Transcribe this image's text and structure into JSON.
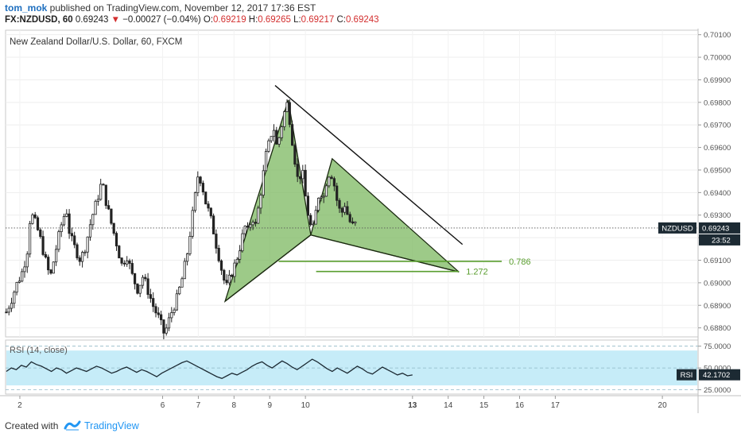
{
  "header": {
    "author": "tom_mok",
    "published": " published on TradingView.com, November 12, 2017 17:36 EST",
    "symbol": "FX:NZDUSD, 60",
    "last": "0.69243",
    "change": "−0.00027 (−0.04%)",
    "open_label": "O:",
    "open": "0.69219",
    "high_label": "H:",
    "high": "0.69265",
    "low_label": "L:",
    "low": "0.69217",
    "close_label": "C:",
    "close": "0.69243"
  },
  "footer": {
    "created_with": "Created with",
    "brand": "TradingView"
  },
  "colors": {
    "pattern_fill": "#7cb860",
    "pattern_stroke": "#1b2a10",
    "fib_line": "#5a9e2f",
    "rsi_bg": "#c6ecf8",
    "rsi_line": "#1c2a33",
    "price_tag": "#1c2a33",
    "candle": "#222222"
  },
  "chart_data": {
    "type": "candlestick",
    "title": "New Zealand Dollar/U.S. Dollar, 60, FXCM",
    "symbol_tag": "NZDUSD",
    "last_price_label": "0.69243",
    "last_price": 0.69243,
    "countdown": "23:52",
    "y_ticks": [
      "0.70100",
      "0.70000",
      "0.69900",
      "0.69800",
      "0.69700",
      "0.69600",
      "0.69500",
      "0.69400",
      "0.69300",
      "0.69200",
      "0.69100",
      "0.69000",
      "0.68900",
      "0.68800"
    ],
    "y_tick_values": [
      0.701,
      0.7,
      0.699,
      0.698,
      0.697,
      0.696,
      0.695,
      0.694,
      0.693,
      0.692,
      0.691,
      0.69,
      0.689,
      0.688
    ],
    "ylim": [
      0.6876,
      0.7012
    ],
    "x_ticks": [
      "2",
      "6",
      "7",
      "8",
      "9",
      "10",
      "13",
      "14",
      "15",
      "16",
      "17",
      "20"
    ],
    "x_tick_values": [
      2,
      6,
      7,
      8,
      9,
      10,
      13,
      14,
      15,
      16,
      17,
      20
    ],
    "x_bold_ticks": [
      "13"
    ],
    "xlim": [
      1.6,
      21.0
    ],
    "last_x": 13.0,
    "price_path": [
      [
        1.62,
        0.6887
      ],
      [
        1.75,
        0.6892
      ],
      [
        1.9,
        0.6899
      ],
      [
        2.05,
        0.6904
      ],
      [
        2.2,
        0.6913
      ],
      [
        2.3,
        0.6931
      ],
      [
        2.4,
        0.6928
      ],
      [
        2.55,
        0.6921
      ],
      [
        2.7,
        0.6911
      ],
      [
        2.85,
        0.6902
      ],
      [
        3.0,
        0.6914
      ],
      [
        3.15,
        0.6925
      ],
      [
        3.3,
        0.6933
      ],
      [
        3.4,
        0.6921
      ],
      [
        3.55,
        0.6915
      ],
      [
        3.7,
        0.691
      ],
      [
        3.85,
        0.6917
      ],
      [
        4.0,
        0.6928
      ],
      [
        4.15,
        0.6936
      ],
      [
        4.3,
        0.6945
      ],
      [
        4.4,
        0.6937
      ],
      [
        4.55,
        0.6927
      ],
      [
        4.7,
        0.6918
      ],
      [
        4.85,
        0.6908
      ],
      [
        5.0,
        0.6912
      ],
      [
        5.15,
        0.6903
      ],
      [
        5.3,
        0.6897
      ],
      [
        5.45,
        0.6903
      ],
      [
        5.6,
        0.6896
      ],
      [
        5.75,
        0.6889
      ],
      [
        5.9,
        0.6884
      ],
      [
        6.05,
        0.6877
      ],
      [
        6.15,
        0.6882
      ],
      [
        6.25,
        0.6887
      ],
      [
        6.4,
        0.6893
      ],
      [
        6.55,
        0.6902
      ],
      [
        6.7,
        0.6914
      ],
      [
        6.8,
        0.6926
      ],
      [
        6.9,
        0.6937
      ],
      [
        7.0,
        0.6949
      ],
      [
        7.1,
        0.6944
      ],
      [
        7.2,
        0.6936
      ],
      [
        7.3,
        0.6931
      ],
      [
        7.4,
        0.6925
      ],
      [
        7.5,
        0.6917
      ],
      [
        7.6,
        0.691
      ],
      [
        7.7,
        0.6902
      ],
      [
        7.8,
        0.6898
      ],
      [
        7.9,
        0.6903
      ],
      [
        8.0,
        0.6907
      ],
      [
        8.1,
        0.6912
      ],
      [
        8.2,
        0.6918
      ],
      [
        8.3,
        0.6925
      ],
      [
        8.4,
        0.6922
      ],
      [
        8.5,
        0.693
      ],
      [
        8.6,
        0.6925
      ],
      [
        8.7,
        0.6935
      ],
      [
        8.8,
        0.6946
      ],
      [
        8.9,
        0.6957
      ],
      [
        9.0,
        0.6963
      ],
      [
        9.1,
        0.697
      ],
      [
        9.2,
        0.696
      ],
      [
        9.3,
        0.6967
      ],
      [
        9.4,
        0.6975
      ],
      [
        9.5,
        0.698
      ],
      [
        9.6,
        0.6967
      ],
      [
        9.7,
        0.6955
      ],
      [
        9.8,
        0.6944
      ],
      [
        9.9,
        0.6951
      ],
      [
        10.0,
        0.6938
      ],
      [
        10.1,
        0.6928
      ],
      [
        10.2,
        0.6922
      ],
      [
        10.3,
        0.6932
      ],
      [
        10.4,
        0.6942
      ],
      [
        10.5,
        0.6937
      ],
      [
        10.6,
        0.6946
      ],
      [
        10.7,
        0.695
      ],
      [
        10.8,
        0.6944
      ],
      [
        10.9,
        0.6935
      ],
      [
        11.0,
        0.693
      ],
      [
        11.1,
        0.6935
      ],
      [
        11.2,
        0.6929
      ],
      [
        11.3,
        0.6925
      ],
      [
        11.4,
        0.6926
      ]
    ],
    "xabcd": {
      "X": [
        7.75,
        0.68918
      ],
      "A": [
        9.52,
        0.6981
      ],
      "B": [
        10.15,
        0.69212
      ],
      "C": [
        10.75,
        0.6955
      ],
      "D": [
        14.3,
        0.69048
      ]
    },
    "trendline": [
      [
        9.15,
        0.69875
      ],
      [
        14.4,
        0.6917
      ]
    ],
    "fib_levels": [
      {
        "label": "0.786",
        "value": 0.69095,
        "x_start": 9.25,
        "x_end": 15.5
      },
      {
        "label": "1.272",
        "value": 0.6905,
        "x_start": 10.3,
        "x_end": 14.3
      }
    ],
    "rsi": {
      "label": "RSI (14, close)",
      "last_label": "42.1702",
      "tag": "RSI",
      "y_ticks": [
        "75.0000",
        "50.0000",
        "25.0000"
      ],
      "y_tick_values": [
        75,
        50,
        25
      ],
      "ylim": [
        20,
        82
      ],
      "band": [
        30,
        70
      ],
      "values": [
        46,
        50,
        48,
        53,
        51,
        57,
        54,
        52,
        49,
        46,
        50,
        48,
        44,
        47,
        50,
        48,
        46,
        49,
        52,
        50,
        47,
        44,
        46,
        49,
        51,
        48,
        45,
        48,
        46,
        43,
        40,
        44,
        47,
        50,
        53,
        56,
        58,
        55,
        52,
        49,
        46,
        43,
        40,
        38,
        41,
        44,
        42,
        45,
        48,
        52,
        55,
        57,
        53,
        50,
        54,
        58,
        55,
        51,
        48,
        52,
        56,
        60,
        57,
        53,
        49,
        46,
        50,
        47,
        44,
        48,
        52,
        49,
        45,
        43,
        47,
        51,
        48,
        45,
        42,
        44,
        41,
        42
      ]
    }
  }
}
